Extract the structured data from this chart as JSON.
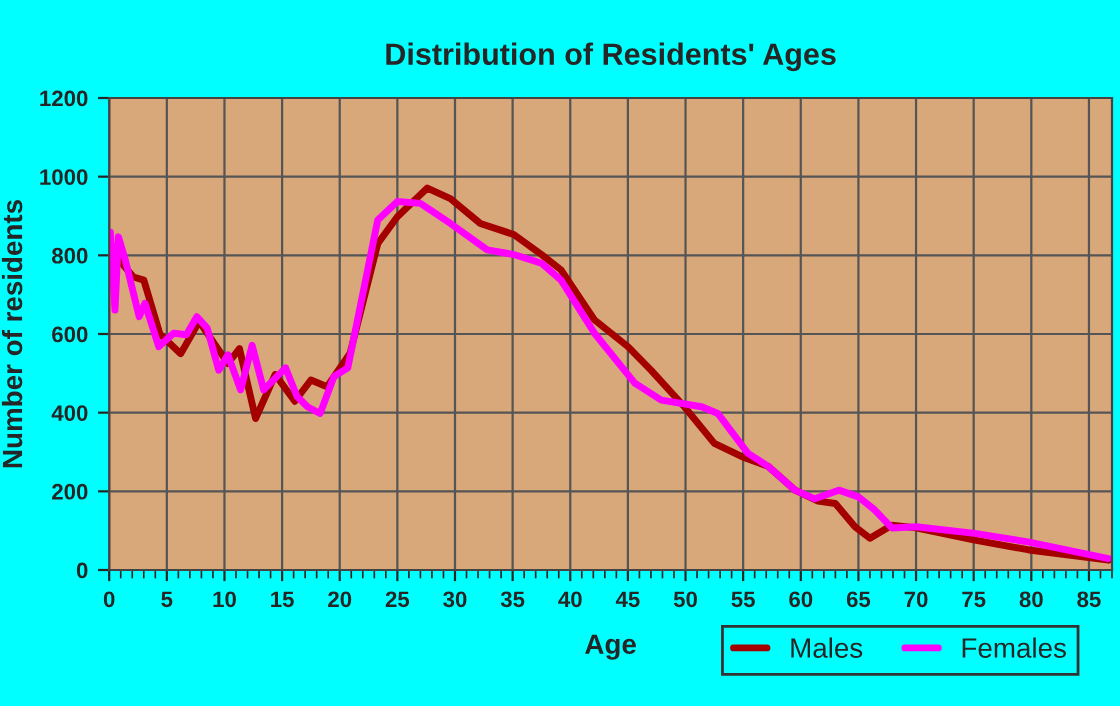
{
  "chart_data": {
    "type": "line",
    "title": "Distribution of Residents' Ages",
    "xlabel": "Age",
    "ylabel": "Number of residents",
    "xlim": [
      0,
      87
    ],
    "xticks": [
      0,
      5,
      10,
      15,
      20,
      25,
      30,
      35,
      40,
      45,
      50,
      55,
      60,
      65,
      70,
      75,
      80,
      85
    ],
    "ylim": [
      0,
      1200
    ],
    "yticks": [
      0,
      200,
      400,
      600,
      800,
      1000,
      1200
    ],
    "grid": true,
    "legend": "bottom right",
    "line_style": "solid",
    "series": [
      {
        "name": "Males",
        "color": "#a50000",
        "x": [
          0.1,
          0.4,
          0.8,
          2.1,
          3,
          4.4,
          6.2,
          7.8,
          10.3,
          11.3,
          12.7,
          14.4,
          16.1,
          17.5,
          18.9,
          20.9,
          23.3,
          25,
          27.6,
          29.6,
          32.2,
          35.1,
          37.5,
          39.2,
          42.1,
          45,
          47,
          49.9,
          52.5,
          54.9,
          57.2,
          59.5,
          61.5,
          63,
          64.7,
          66,
          67.9,
          70,
          75.1,
          79.8,
          86.7
        ],
        "values": [
          805,
          745,
          790,
          745,
          737,
          600,
          550,
          632,
          525,
          563,
          385,
          497,
          429,
          483,
          466,
          551,
          830,
          898,
          971,
          944,
          881,
          853,
          802,
          763,
          636,
          568,
          508,
          415,
          322,
          288,
          263,
          203,
          175,
          169,
          110,
          81,
          114,
          107,
          76,
          51,
          25
        ]
      },
      {
        "name": "Females",
        "color": "#ff00ff",
        "x": [
          0.1,
          0.5,
          0.8,
          1.4,
          2.6,
          3.1,
          4.3,
          5.6,
          6.7,
          7.6,
          8.5,
          9.5,
          10.3,
          11.4,
          12.4,
          13.4,
          15.3,
          16.3,
          17.2,
          18.3,
          19.5,
          20.7,
          23.3,
          25,
          27,
          29.6,
          32.8,
          35.1,
          37.5,
          39.2,
          42.1,
          45.6,
          47.9,
          51.4,
          52.8,
          55.4,
          57.2,
          59.5,
          61.2,
          63.3,
          65,
          66.4,
          67.9,
          70,
          75.1,
          79.8,
          86.7
        ],
        "values": [
          859,
          661,
          847,
          788,
          644,
          678,
          568,
          602,
          598,
          644,
          615,
          508,
          547,
          458,
          571,
          458,
          514,
          441,
          415,
          398,
          492,
          514,
          890,
          937,
          932,
          881,
          814,
          802,
          780,
          737,
          602,
          475,
          432,
          415,
          398,
          297,
          263,
          203,
          181,
          203,
          186,
          153,
          107,
          110,
          93,
          71,
          29
        ]
      }
    ]
  }
}
